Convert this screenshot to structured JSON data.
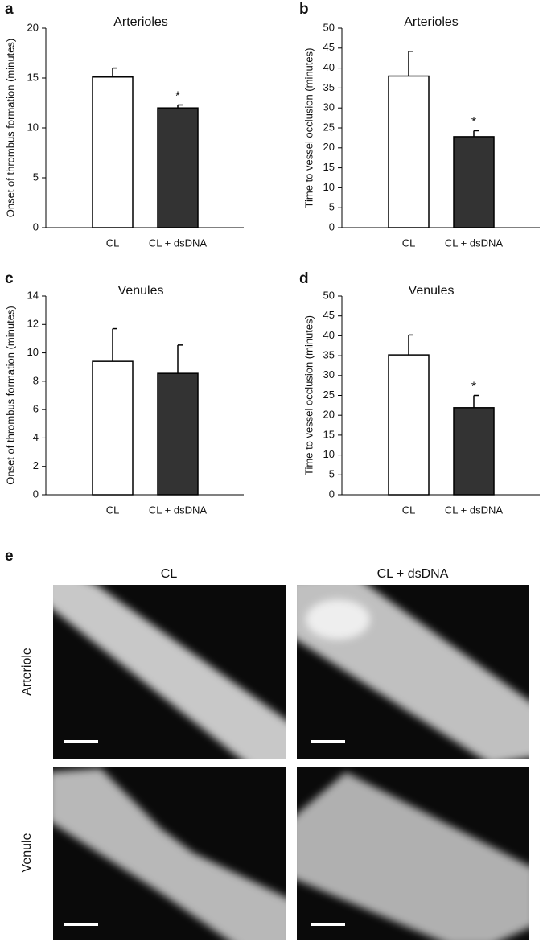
{
  "chart_data": [
    {
      "type": "bar",
      "panel": "a",
      "title": "Arterioles",
      "y_label": "Onset of thrombus formation (minutes)",
      "categories": [
        "CL",
        "CL + dsDNA"
      ],
      "values": [
        15.1,
        12.0
      ],
      "errors": [
        0.9,
        0.3
      ],
      "colors": [
        "#ffffff",
        "#333333"
      ],
      "significance": [
        null,
        "*"
      ],
      "ylim": [
        0,
        20
      ],
      "yticks": [
        0,
        5,
        10,
        15,
        20
      ]
    },
    {
      "type": "bar",
      "panel": "b",
      "title": "Arterioles",
      "y_label": "Time to vessel occlusion (minutes)",
      "categories": [
        "CL",
        "CL + dsDNA"
      ],
      "values": [
        38.0,
        22.8
      ],
      "errors": [
        6.2,
        1.5
      ],
      "colors": [
        "#ffffff",
        "#333333"
      ],
      "significance": [
        null,
        "*"
      ],
      "ylim": [
        0,
        50
      ],
      "yticks": [
        0,
        5,
        10,
        15,
        20,
        25,
        30,
        35,
        40,
        45,
        50
      ]
    },
    {
      "type": "bar",
      "panel": "c",
      "title": "Venules",
      "y_label": "Onset of thrombus formation (minutes)",
      "categories": [
        "CL",
        "CL + dsDNA"
      ],
      "values": [
        9.4,
        8.55
      ],
      "errors": [
        2.3,
        2.0
      ],
      "colors": [
        "#ffffff",
        "#333333"
      ],
      "significance": [
        null,
        null
      ],
      "ylim": [
        0,
        14
      ],
      "yticks": [
        0,
        2,
        4,
        6,
        8,
        10,
        12,
        14
      ]
    },
    {
      "type": "bar",
      "panel": "d",
      "title": "Venules",
      "y_label": "Time to vessel occlusion (minutes)",
      "categories": [
        "CL",
        "CL + dsDNA"
      ],
      "values": [
        35.2,
        21.9
      ],
      "errors": [
        5.0,
        3.1
      ],
      "colors": [
        "#ffffff",
        "#333333"
      ],
      "significance": [
        null,
        "*"
      ],
      "ylim": [
        0,
        50
      ],
      "yticks": [
        0,
        5,
        10,
        15,
        20,
        25,
        30,
        35,
        40,
        45,
        50
      ]
    }
  ],
  "panel_e": {
    "panel": "e",
    "columns": [
      "CL",
      "CL + dsDNA"
    ],
    "rows": [
      "Arteriole",
      "Venule"
    ]
  }
}
